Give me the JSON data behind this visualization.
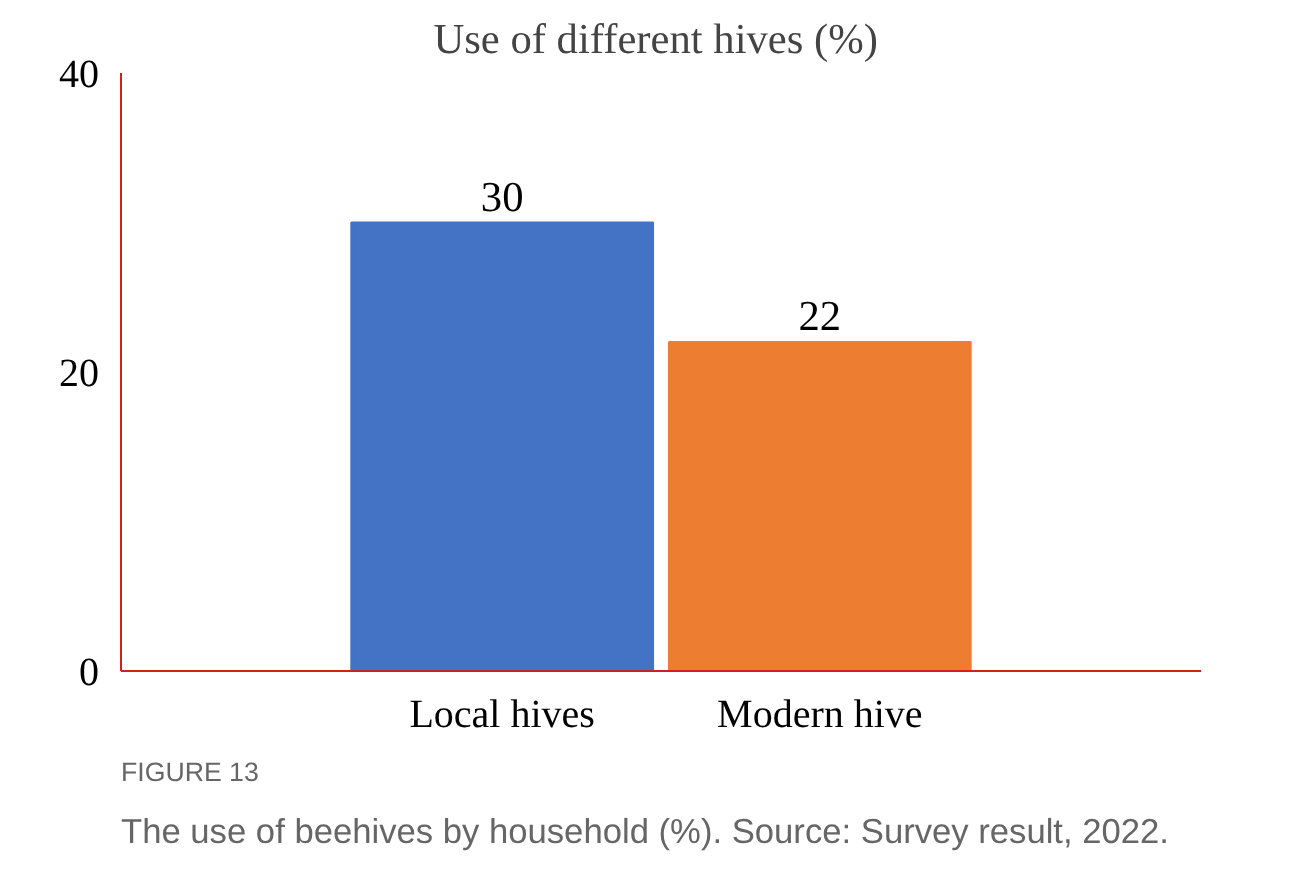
{
  "chart_data": {
    "type": "bar",
    "title": "Use of different  hives (%)",
    "categories": [
      "Local hives",
      "Modern hive"
    ],
    "values": [
      30,
      22
    ],
    "colors": [
      "#4472c4",
      "#ed7d31"
    ],
    "ylim": [
      0,
      40
    ],
    "yticks": [
      0,
      20,
      40
    ],
    "data_labels": true,
    "grid": false,
    "annotations": [
      "FIGURE 13",
      "The use of beehives by household (%). Source: Survey result, 2022."
    ]
  }
}
